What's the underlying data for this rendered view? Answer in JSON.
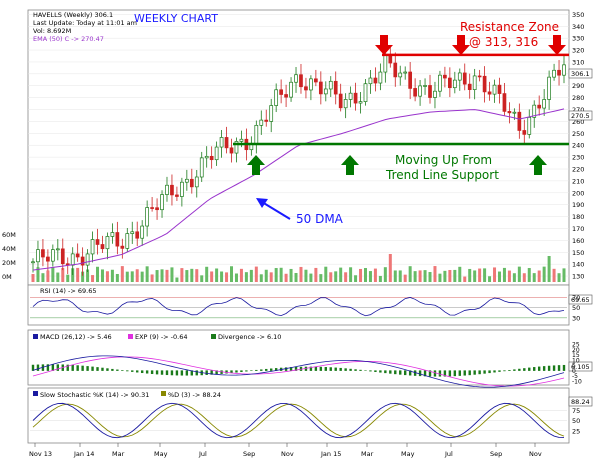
{
  "header": {
    "symbol_line": "HAVELLS (Weekly) 306.1",
    "update_line": "Last Update: Today at 11:01 am",
    "volume_line": "Vol: 8.692M",
    "ema_line": "EMA (50) C -> 270.47",
    "chart_title": "WEEKLY CHART"
  },
  "annotations": {
    "resistance_title": "Resistance Zone",
    "resistance_values": "@ 313, 316",
    "support_line1": "Moving Up From",
    "support_line2": "Trend Line Support",
    "dma_label": "50 DMA"
  },
  "price_panel": {
    "y_ticks": [
      350,
      340,
      330,
      320,
      310,
      300,
      290,
      280,
      270,
      260,
      250,
      240,
      230,
      220,
      210,
      200,
      190,
      180,
      170,
      160,
      150,
      140,
      130
    ],
    "last_price_label": "306.1",
    "ema_label": "270.5",
    "resistance_level": 316,
    "support_level": 241,
    "volume_ticks": [
      "60M",
      "40M",
      "20M",
      "0M"
    ]
  },
  "rsi_panel": {
    "label": "RSI (14) -> 69.65",
    "value_label": "69.65",
    "y_ticks": [
      "70",
      "50",
      "30"
    ]
  },
  "macd_panel": {
    "label_macd": "MACD (26,12) -> 5.46",
    "label_exp": "EXP (9) -> -0.64",
    "label_div": "Divergence -> 6.10",
    "value_label": "6.105",
    "y_ticks": [
      "25",
      "20",
      "15",
      "10",
      "5",
      "0",
      "-5",
      "-10"
    ]
  },
  "stoch_panel": {
    "label_k": "Slow Stochastic %K (14) -> 90.31",
    "label_d": "%D (3) -> 88.24",
    "value_label": "88.24",
    "y_ticks": [
      "75",
      "50",
      "25"
    ]
  },
  "x_axis": {
    "labels": [
      "Nov 13",
      "Jan 14",
      "Mar",
      "May",
      "Jul",
      "Sep",
      "Nov",
      "Jan 15",
      "Mar",
      "May",
      "Jul",
      "Sep",
      "Nov"
    ]
  },
  "colors": {
    "up": "#1a7a1a",
    "down": "#cc2222",
    "ema": "#9933cc",
    "resistance": "#e00000",
    "support": "#007700",
    "annotation_blue": "#1a1aff"
  },
  "chart_data": {
    "type": "line",
    "title": "WEEKLY CHART",
    "x": [
      "Nov 13",
      "Jan 14",
      "Mar",
      "May",
      "Jul",
      "Sep",
      "Nov",
      "Jan 15",
      "Mar",
      "May",
      "Jul",
      "Sep",
      "Nov"
    ],
    "series": [
      {
        "name": "HAVELLS (Weekly)",
        "values": [
          142,
          148,
          160,
          195,
          230,
          250,
          300,
          275,
          305,
          285,
          300,
          255,
          306
        ]
      },
      {
        "name": "EMA (50) C",
        "values": [
          135,
          140,
          148,
          165,
          195,
          215,
          240,
          250,
          262,
          268,
          270,
          262,
          270.5
        ]
      }
    ],
    "ylim": [
      125,
      352
    ],
    "resistance": [
      313,
      316
    ],
    "support": 241
  }
}
